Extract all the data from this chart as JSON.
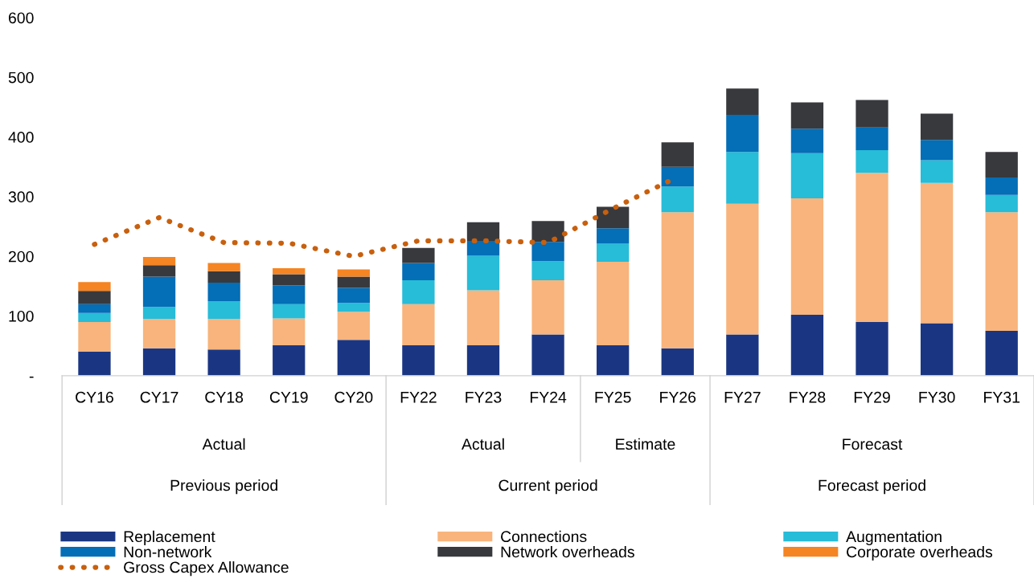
{
  "chart_data": {
    "type": "bar",
    "stacked": true,
    "categories": [
      "CY16",
      "CY17",
      "CY18",
      "CY19",
      "CY20",
      "FY22",
      "FY23",
      "FY24",
      "FY25",
      "FY26",
      "FY27",
      "FY28",
      "FY29",
      "FY30",
      "FY31"
    ],
    "series": [
      {
        "name": "Replacement",
        "color": "#1a3683",
        "values": [
          40,
          46,
          44,
          51,
          60,
          51,
          51,
          69,
          51,
          46,
          69,
          102,
          90,
          88,
          75
        ]
      },
      {
        "name": "Connections",
        "color": "#f8b47c",
        "values": [
          50,
          49,
          51,
          45,
          47,
          69,
          92,
          91,
          140,
          228,
          219,
          195,
          250,
          235,
          199
        ]
      },
      {
        "name": "Augmentation",
        "color": "#27bcd8",
        "values": [
          15,
          20,
          30,
          24,
          15,
          40,
          58,
          32,
          30,
          43,
          87,
          76,
          38,
          38,
          29
        ]
      },
      {
        "name": "Non-network",
        "color": "#046eb7",
        "values": [
          15,
          51,
          31,
          31,
          25,
          29,
          25,
          32,
          26,
          33,
          62,
          41,
          38,
          34,
          29
        ]
      },
      {
        "name": "Network overheads",
        "color": "#38393d",
        "values": [
          22,
          19,
          19,
          19,
          19,
          25,
          31,
          35,
          36,
          41,
          44,
          44,
          46,
          44,
          43
        ]
      },
      {
        "name": "Corporate overheads",
        "color": "#f58423",
        "values": [
          15,
          14,
          14,
          10,
          12,
          null,
          null,
          null,
          null,
          null,
          null,
          null,
          null,
          null,
          null
        ]
      },
      {
        "name": "Gross Capex Allowance",
        "type": "line",
        "color": "#c8600e",
        "line_style": "dotted",
        "values": [
          220,
          265,
          223,
          222,
          200,
          226,
          226,
          223,
          280,
          333,
          null,
          null,
          null,
          null,
          null
        ]
      }
    ],
    "ylim": [
      0,
      600
    ],
    "yticks": [
      {
        "value": 0,
        "label": "-"
      },
      100,
      200,
      300,
      400,
      500,
      600
    ],
    "grid": false,
    "legend": "bottom",
    "annotations": [
      "Actual",
      "Actual",
      "Estimate",
      "Forecast",
      "Previous period",
      "Current period",
      "Forecast period"
    ]
  }
}
